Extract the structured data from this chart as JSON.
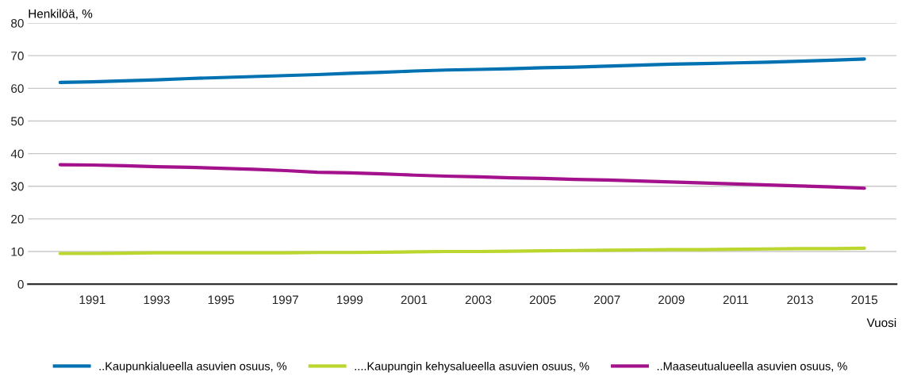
{
  "chart_data": {
    "type": "line",
    "ylabel": "Henkilöä, %",
    "xlabel": "Vuosi",
    "x": [
      1990,
      1991,
      1992,
      1993,
      1994,
      1995,
      1996,
      1997,
      1998,
      1999,
      2000,
      2001,
      2002,
      2003,
      2004,
      2005,
      2006,
      2007,
      2008,
      2009,
      2010,
      2011,
      2012,
      2013,
      2014,
      2015
    ],
    "series": [
      {
        "name": "..Kaupunkialueella asuvien osuus, %",
        "color": "#0072b2",
        "values": [
          61.8,
          62.0,
          62.3,
          62.6,
          63.0,
          63.3,
          63.6,
          63.9,
          64.2,
          64.6,
          64.9,
          65.3,
          65.6,
          65.8,
          66.0,
          66.3,
          66.5,
          66.8,
          67.1,
          67.4,
          67.6,
          67.8,
          68.0,
          68.3,
          68.6,
          69.0
        ]
      },
      {
        "name": "....Kaupungin kehysalueella asuvien osuus, %",
        "color": "#bcd630",
        "values": [
          9.4,
          9.4,
          9.5,
          9.6,
          9.6,
          9.6,
          9.6,
          9.6,
          9.7,
          9.7,
          9.8,
          9.9,
          10.0,
          10.0,
          10.1,
          10.2,
          10.3,
          10.4,
          10.5,
          10.6,
          10.6,
          10.7,
          10.8,
          10.9,
          10.9,
          11.0
        ]
      },
      {
        "name": "..Maaseutualueella asuvien osuus, %",
        "color": "#a3128c",
        "values": [
          36.6,
          36.5,
          36.3,
          36.0,
          35.8,
          35.5,
          35.2,
          34.8,
          34.3,
          34.1,
          33.8,
          33.4,
          33.1,
          32.9,
          32.6,
          32.4,
          32.1,
          31.9,
          31.6,
          31.3,
          31.0,
          30.7,
          30.4,
          30.1,
          29.8,
          29.4
        ]
      }
    ],
    "xlim": [
      1989,
      2016
    ],
    "xticks": [
      1991,
      1993,
      1995,
      1997,
      1999,
      2001,
      2003,
      2005,
      2007,
      2009,
      2011,
      2013,
      2015
    ],
    "ylim": [
      0,
      80
    ],
    "yticks": [
      0,
      10,
      20,
      30,
      40,
      50,
      60,
      70,
      80
    ],
    "grid": "y",
    "legend": "bottom",
    "line_style": "solid",
    "marker": "none"
  }
}
